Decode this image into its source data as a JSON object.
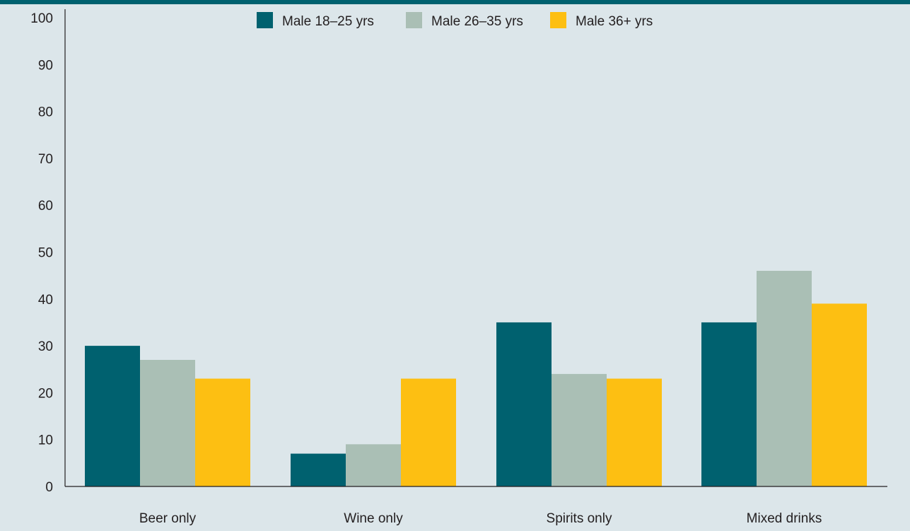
{
  "chart_data": {
    "type": "bar",
    "categories": [
      "Beer only",
      "Wine only",
      "Spirits only",
      "Mixed drinks"
    ],
    "series": [
      {
        "name": "Male 18–25 yrs",
        "color": "#00616f",
        "values": [
          30,
          7,
          35,
          35
        ]
      },
      {
        "name": "Male 26–35 yrs",
        "color": "#aabfb5",
        "values": [
          27,
          9,
          24,
          46
        ]
      },
      {
        "name": "Male 36+ yrs",
        "color": "#fdbf12",
        "values": [
          23,
          23,
          23,
          39
        ]
      }
    ],
    "yticks": [
      "0",
      "10",
      "20",
      "30",
      "40",
      "50",
      "60",
      "70",
      "80",
      "90",
      "100"
    ],
    "ylim": [
      0,
      100
    ],
    "title": "",
    "xlabel": "",
    "ylabel": "",
    "grid": false,
    "legend_position": "top-center"
  }
}
